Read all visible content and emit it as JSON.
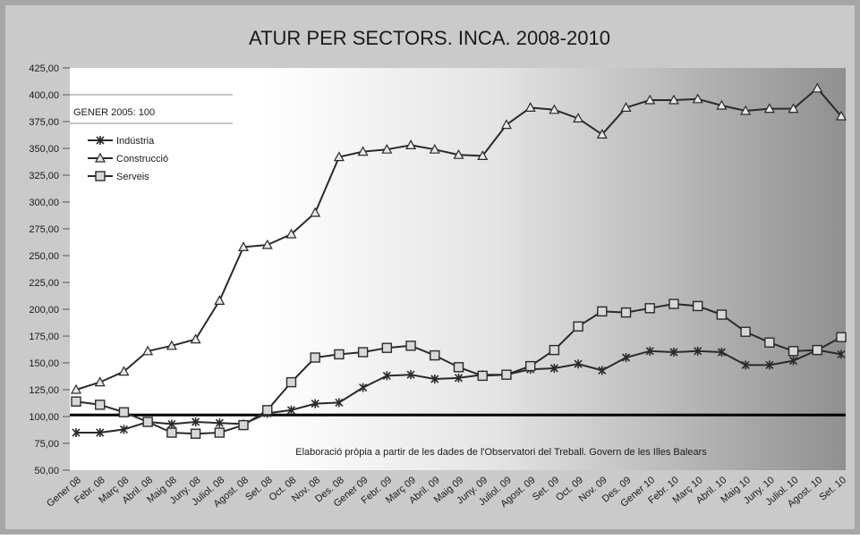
{
  "colors": {
    "frame": "#a8a8a8",
    "panel": "#c8c8c8",
    "plot_light": "#ffffff",
    "plot_dark": "#8f8f8f",
    "line": "#2a2a2a",
    "reference_line": "#000000",
    "grid": "#7a7a7a"
  },
  "chart_data": {
    "type": "line",
    "title": "ATUR PER SECTORS. INCA. 2008-2010",
    "subtitle": "GENER 2005: 100",
    "annotation": "Elaboració pròpia a partir de les dades de l'Observatori del Treball. Govern de les Illes Balears",
    "xlabel": "",
    "ylabel": "",
    "ylim": [
      50,
      425
    ],
    "y_ticks": [
      "50,00",
      "75,00",
      "100,00",
      "125,00",
      "150,00",
      "175,00",
      "200,00",
      "225,00",
      "250,00",
      "275,00",
      "300,00",
      "325,00",
      "350,00",
      "375,00",
      "400,00",
      "425,00"
    ],
    "reference_value": 101.5,
    "legend_position": "top-left",
    "categories": [
      "Gener 08",
      "Febr. 08",
      "Març 08",
      "Abril. 08",
      "Maig 08",
      "Juny. 08",
      "Juliol. 08",
      "Agost. 08",
      "Set. 08",
      "Oct. 08",
      "Nov. 08",
      "Des. 08",
      "Gener 09",
      "Febr. 09",
      "Març 09",
      "Abril. 09",
      "Maig 09",
      "Juny. 09",
      "Juliol. 09",
      "Agost. 09",
      "Set. 09",
      "Oct. 09",
      "Nov. 09",
      "Des. 09",
      "Gener 10",
      "Febr. 10",
      "Març 10",
      "Abril. 10",
      "Maig 10",
      "Juny. 10",
      "Juliol. 10",
      "Agost. 10",
      "Set. 10"
    ],
    "series": [
      {
        "name": "Indústria",
        "marker": "star",
        "values": [
          85,
          85,
          88,
          95,
          93,
          95,
          94,
          93,
          103,
          106,
          112,
          113,
          127,
          138,
          139,
          135,
          136,
          139,
          139,
          144,
          145,
          149,
          143,
          155,
          161,
          160,
          161,
          160,
          148,
          148,
          152,
          162,
          158
        ]
      },
      {
        "name": "Construcció",
        "marker": "triangle",
        "values": [
          125,
          132,
          142,
          161,
          166,
          172,
          208,
          258,
          260,
          270,
          290,
          342,
          347,
          349,
          353,
          349,
          344,
          343,
          372,
          388,
          386,
          378,
          363,
          388,
          395,
          395,
          396,
          390,
          385,
          387,
          387,
          406,
          380
        ]
      },
      {
        "name": "Serveis",
        "marker": "square",
        "values": [
          114,
          111,
          104,
          95,
          85,
          84,
          85,
          92,
          106,
          132,
          155,
          158,
          160,
          164,
          166,
          157,
          146,
          138,
          139,
          147,
          162,
          184,
          198,
          197,
          201,
          205,
          203,
          195,
          179,
          169,
          161,
          162,
          174
        ]
      }
    ]
  }
}
